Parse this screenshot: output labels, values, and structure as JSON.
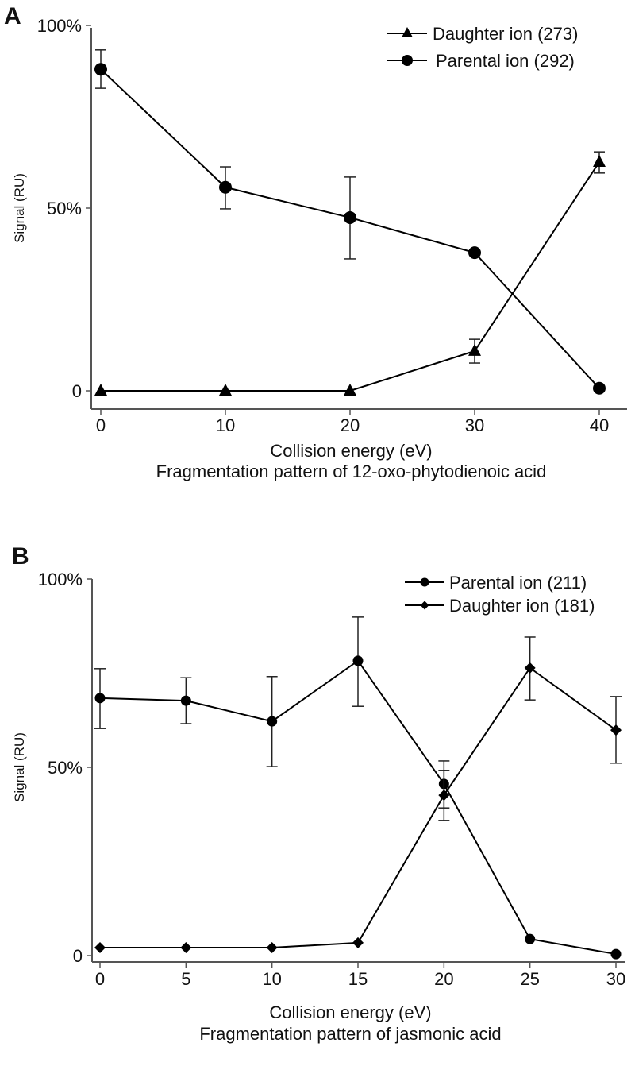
{
  "chart_data": [
    {
      "type": "line",
      "panel_label": "A",
      "title": "Fragmentation pattern of 12-oxo-phytodienoic acid",
      "xlabel": "Collision energy (eV)",
      "ylabel": "Signal (RU)",
      "x": [
        0,
        10,
        20,
        30,
        40
      ],
      "xticks": [
        "0",
        "10",
        "20",
        "30",
        "40"
      ],
      "yticks": [
        {
          "value": 0,
          "label": "0"
        },
        {
          "value": 50,
          "label": "50%"
        },
        {
          "value": 100,
          "label": "100%"
        }
      ],
      "ylim": [
        0,
        100
      ],
      "xlim": [
        -1,
        41
      ],
      "grid": false,
      "legend_position": "top-right",
      "series": [
        {
          "name": "Daughter ion (273)",
          "marker": "triangle",
          "values": [
            0,
            0,
            0,
            10.9,
            62.6
          ],
          "err_low": [
            null,
            null,
            null,
            7.6,
            59.6
          ],
          "err_high": [
            null,
            null,
            null,
            14.1,
            65.4
          ]
        },
        {
          "name": "Parental ion (292)",
          "marker": "circle",
          "values": [
            88.0,
            55.7,
            47.4,
            37.8,
            0.7
          ],
          "err_low": [
            82.8,
            49.8,
            36.1,
            null,
            null
          ],
          "err_high": [
            93.3,
            61.3,
            58.5,
            null,
            null
          ]
        }
      ]
    },
    {
      "type": "line",
      "panel_label": "B",
      "title": "Fragmentation pattern of  jasmonic acid",
      "xlabel": "Collision energy (eV)",
      "ylabel": "Signal (RU)",
      "x": [
        0,
        5,
        10,
        15,
        20,
        25,
        30
      ],
      "xticks": [
        "0",
        "5",
        "10",
        "15",
        "20",
        "25",
        "30"
      ],
      "yticks": [
        {
          "value": 0,
          "label": "0"
        },
        {
          "value": 50,
          "label": "50%"
        },
        {
          "value": 100,
          "label": "100%"
        }
      ],
      "ylim": [
        0,
        100
      ],
      "xlim": [
        -0.5,
        30.5
      ],
      "grid": false,
      "legend_position": "top-right",
      "series": [
        {
          "name": "Parental ion (211)",
          "marker": "circle",
          "values": [
            68.4,
            67.7,
            62.2,
            78.3,
            45.6,
            4.4,
            0.4
          ],
          "err_low": [
            60.3,
            61.6,
            50.2,
            66.2,
            39.2,
            null,
            null
          ],
          "err_high": [
            76.2,
            73.8,
            74.1,
            89.9,
            51.7,
            null,
            null
          ]
        },
        {
          "name": "Daughter ion (181)",
          "marker": "diamond",
          "values": [
            2.1,
            2.1,
            2.1,
            3.4,
            42.6,
            76.4,
            59.9
          ],
          "err_low": [
            null,
            null,
            null,
            null,
            35.9,
            67.9,
            51.1
          ],
          "err_high": [
            null,
            null,
            null,
            null,
            49.2,
            84.6,
            68.8
          ]
        }
      ]
    }
  ]
}
